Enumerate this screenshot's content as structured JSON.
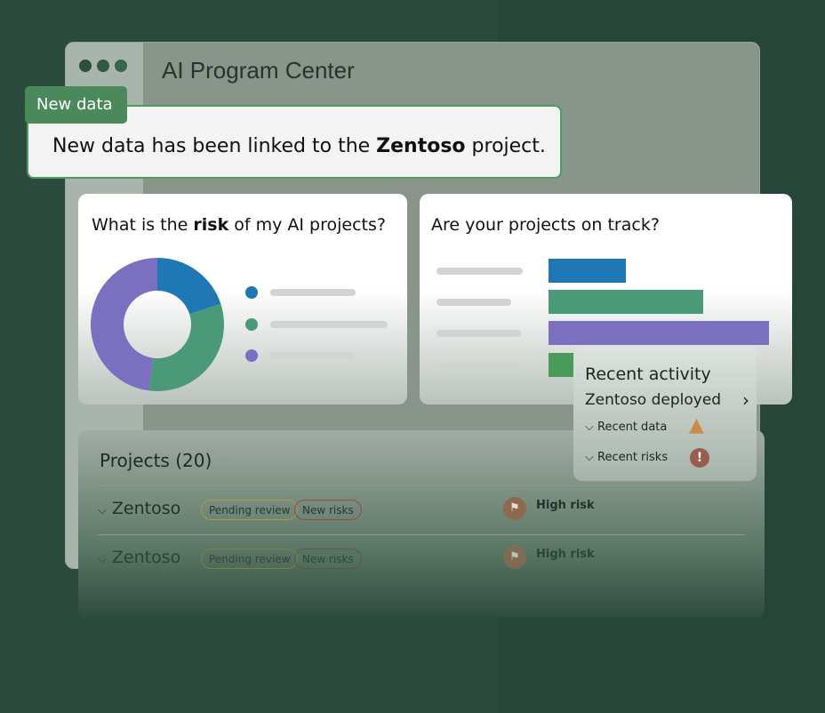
{
  "window": {
    "title": "AI Program Center",
    "dot_colors": [
      "#2c5038",
      "#2f5a40",
      "#35684a"
    ]
  },
  "toast": {
    "tag": "New data",
    "text_before": "New data has been linked to the ",
    "project": "Zentoso",
    "text_after": " project."
  },
  "risk_card": {
    "title_before": "What is the ",
    "title_bold": "risk",
    "title_after": " of my AI projects?",
    "chart_data": {
      "type": "pie",
      "donut": true,
      "values": [
        0.2,
        0.32,
        0.48
      ],
      "colors": [
        "#1f77b4",
        "#4a9a7a",
        "#7b6fbf"
      ]
    }
  },
  "track_card": {
    "title": "Are your projects on track?",
    "chart_data": {
      "type": "bar",
      "orientation": "horizontal",
      "values": [
        0.35,
        0.7,
        1.0,
        0.45
      ],
      "colors": [
        "#1f77b4",
        "#4a9a7a",
        "#7b6fbf",
        "#4a9a5a"
      ]
    }
  },
  "activity": {
    "title": "Recent activity",
    "item": "Zentoso deployed",
    "rows": [
      {
        "label": "Recent data",
        "icon": "warning-icon",
        "color": "#c98a4b"
      },
      {
        "label": "Recent risks",
        "icon": "alert-icon",
        "color": "#9a5c4f"
      }
    ]
  },
  "projects": {
    "title": "Projects (20)",
    "rows": [
      {
        "name": "Zentoso",
        "badges": [
          "Pending review",
          "New risks"
        ],
        "risk": "High risk"
      },
      {
        "name": "Zentoso",
        "badges": [
          "Pending review",
          "New risks"
        ],
        "risk": "High risk"
      }
    ]
  }
}
